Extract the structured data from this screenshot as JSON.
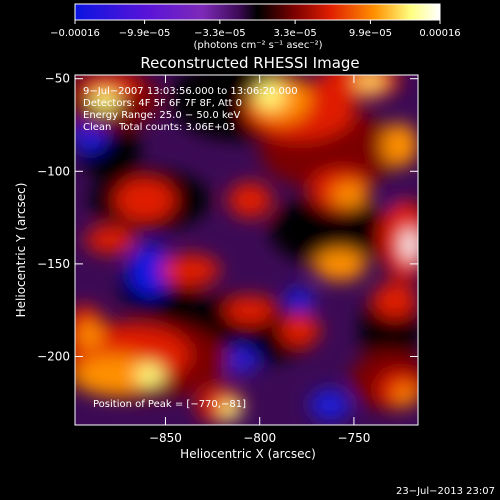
{
  "chart_data": {
    "type": "heatmap",
    "title": "Reconstructed RHESSI Image",
    "xlabel": "Heliocentric X (arcsec)",
    "ylabel": "Heliocentric Y (arcsec)",
    "xlim": [
      -898,
      -716
    ],
    "ylim": [
      -237,
      -48
    ],
    "x_ticks": [
      -850,
      -800,
      -750
    ],
    "x_tick_labels": [
      "−850",
      "−800",
      "−750"
    ],
    "y_ticks": [
      -200,
      -150,
      -100,
      -50
    ],
    "y_tick_labels": [
      "−200",
      "−150",
      "−100",
      "−50"
    ],
    "colorbar": {
      "min": -0.00016,
      "max": 0.00016,
      "tick_values": [
        -0.00016,
        -9.9e-05,
        -3.3e-05,
        3.3e-05,
        9.9e-05,
        0.00016
      ],
      "tick_labels": [
        "−0.00016",
        "−9.9e−05",
        "−3.3e−05",
        "3.3e−05",
        "9.9e−05",
        "0.00016"
      ],
      "unit_label": "(photons cm⁻² s⁻¹ asec⁻²)",
      "colormap": [
        "#0a14e0",
        "#5a14d8",
        "#7d2ab8",
        "#3c0a55",
        "#000000",
        "#7a0000",
        "#e01e00",
        "#ff9000",
        "#ffff80",
        "#ffffff"
      ]
    },
    "annotations": {
      "time_range": "9−Jul−2007 13:03:56.000 to 13:06:20.000",
      "detectors": "Detectors: 4F 5F 6F 7F 8F, Att 0",
      "energy_range": "Energy Range: 25.0 − 50.0 keV",
      "clean": "Clean",
      "total_counts": "Total counts: 3.06E+03",
      "peak": "Position of Peak = [−770,−81]"
    },
    "footer_timestamp": "23−Jul−2013 23:07",
    "peak": {
      "x": -770,
      "y": -81
    }
  }
}
